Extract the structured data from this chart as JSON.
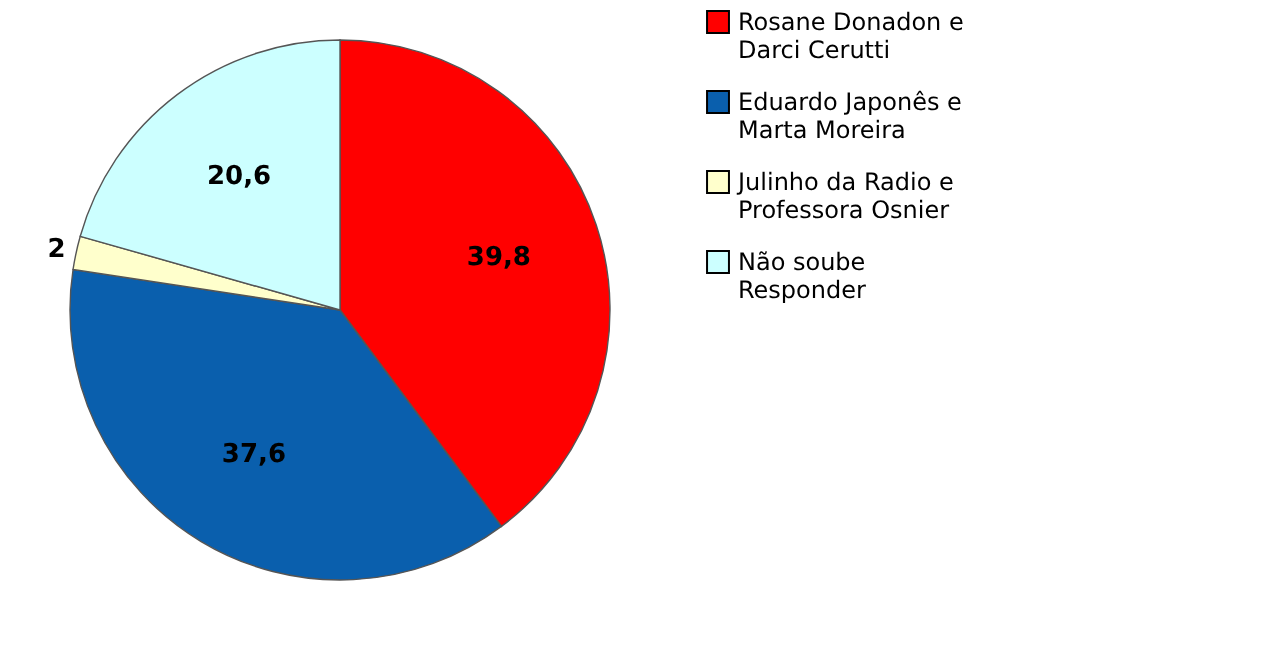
{
  "chart_data": {
    "type": "pie",
    "categories": [
      "Rosane Donadon e Darci Cerutti",
      "Eduardo Japonês e Marta Moreira",
      "Julinho da Radio e Professora Osnier",
      "Não soube Responder"
    ],
    "values": [
      39.8,
      37.6,
      2,
      20.6
    ],
    "value_labels": [
      "39,8",
      "37,6",
      "2",
      "20,6"
    ],
    "colors": [
      "#ff0000",
      "#0a5fad",
      "#ffffcc",
      "#ccffff"
    ],
    "legend": "right"
  }
}
